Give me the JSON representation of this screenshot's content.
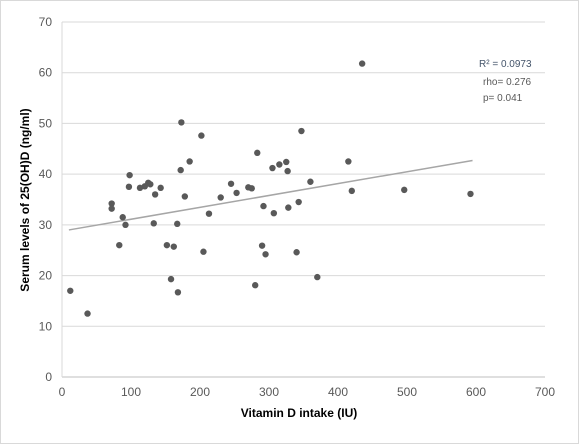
{
  "chart_data": {
    "type": "scatter",
    "xlabel": "Vitamin D intake (IU)",
    "ylabel": "Serum levels of 25(OH)D (ng/ml)",
    "xlim": [
      0,
      700
    ],
    "ylim": [
      0,
      70
    ],
    "xticks": [
      "0",
      "100",
      "200",
      "300",
      "400",
      "500",
      "600",
      "700"
    ],
    "yticks": [
      "0",
      "10",
      "20",
      "30",
      "40",
      "50",
      "60",
      "70"
    ],
    "grid": "horizontal",
    "point_color": "#595959",
    "trend_color": "#a6a6a6",
    "trendline": {
      "x": [
        10,
        595
      ],
      "y": [
        29.0,
        42.7
      ]
    },
    "annotations": [
      "R² = 0.0973",
      "rho= 0.276",
      "p= 0.041"
    ],
    "points": [
      {
        "x": 12,
        "y": 17
      },
      {
        "x": 37,
        "y": 12.5
      },
      {
        "x": 72,
        "y": 34.2
      },
      {
        "x": 72,
        "y": 33.2
      },
      {
        "x": 83,
        "y": 26
      },
      {
        "x": 88,
        "y": 31.5
      },
      {
        "x": 92,
        "y": 30
      },
      {
        "x": 97,
        "y": 37.5
      },
      {
        "x": 98,
        "y": 39.8
      },
      {
        "x": 113,
        "y": 37.3
      },
      {
        "x": 120,
        "y": 37.6
      },
      {
        "x": 125,
        "y": 38.3
      },
      {
        "x": 128,
        "y": 38
      },
      {
        "x": 133,
        "y": 30.3
      },
      {
        "x": 135,
        "y": 36
      },
      {
        "x": 143,
        "y": 37.3
      },
      {
        "x": 152,
        "y": 26
      },
      {
        "x": 158,
        "y": 19.3
      },
      {
        "x": 162,
        "y": 25.7
      },
      {
        "x": 167,
        "y": 30.2
      },
      {
        "x": 168,
        "y": 16.7
      },
      {
        "x": 172,
        "y": 40.8
      },
      {
        "x": 173,
        "y": 50.2
      },
      {
        "x": 178,
        "y": 35.6
      },
      {
        "x": 185,
        "y": 42.5
      },
      {
        "x": 202,
        "y": 47.6
      },
      {
        "x": 205,
        "y": 24.7
      },
      {
        "x": 213,
        "y": 32.2
      },
      {
        "x": 230,
        "y": 35.4
      },
      {
        "x": 245,
        "y": 38.1
      },
      {
        "x": 253,
        "y": 36.3
      },
      {
        "x": 270,
        "y": 37.4
      },
      {
        "x": 275,
        "y": 37.2
      },
      {
        "x": 280,
        "y": 18.1
      },
      {
        "x": 283,
        "y": 44.2
      },
      {
        "x": 290,
        "y": 25.9
      },
      {
        "x": 292,
        "y": 33.7
      },
      {
        "x": 295,
        "y": 24.2
      },
      {
        "x": 305,
        "y": 41.2
      },
      {
        "x": 307,
        "y": 32.3
      },
      {
        "x": 315,
        "y": 41.9
      },
      {
        "x": 325,
        "y": 42.4
      },
      {
        "x": 327,
        "y": 40.6
      },
      {
        "x": 328,
        "y": 33.4
      },
      {
        "x": 340,
        "y": 24.6
      },
      {
        "x": 343,
        "y": 34.5
      },
      {
        "x": 347,
        "y": 48.5
      },
      {
        "x": 360,
        "y": 38.5
      },
      {
        "x": 370,
        "y": 19.7
      },
      {
        "x": 415,
        "y": 42.5
      },
      {
        "x": 420,
        "y": 36.7
      },
      {
        "x": 435,
        "y": 61.8
      },
      {
        "x": 496,
        "y": 36.9
      },
      {
        "x": 592,
        "y": 36.1
      }
    ]
  }
}
